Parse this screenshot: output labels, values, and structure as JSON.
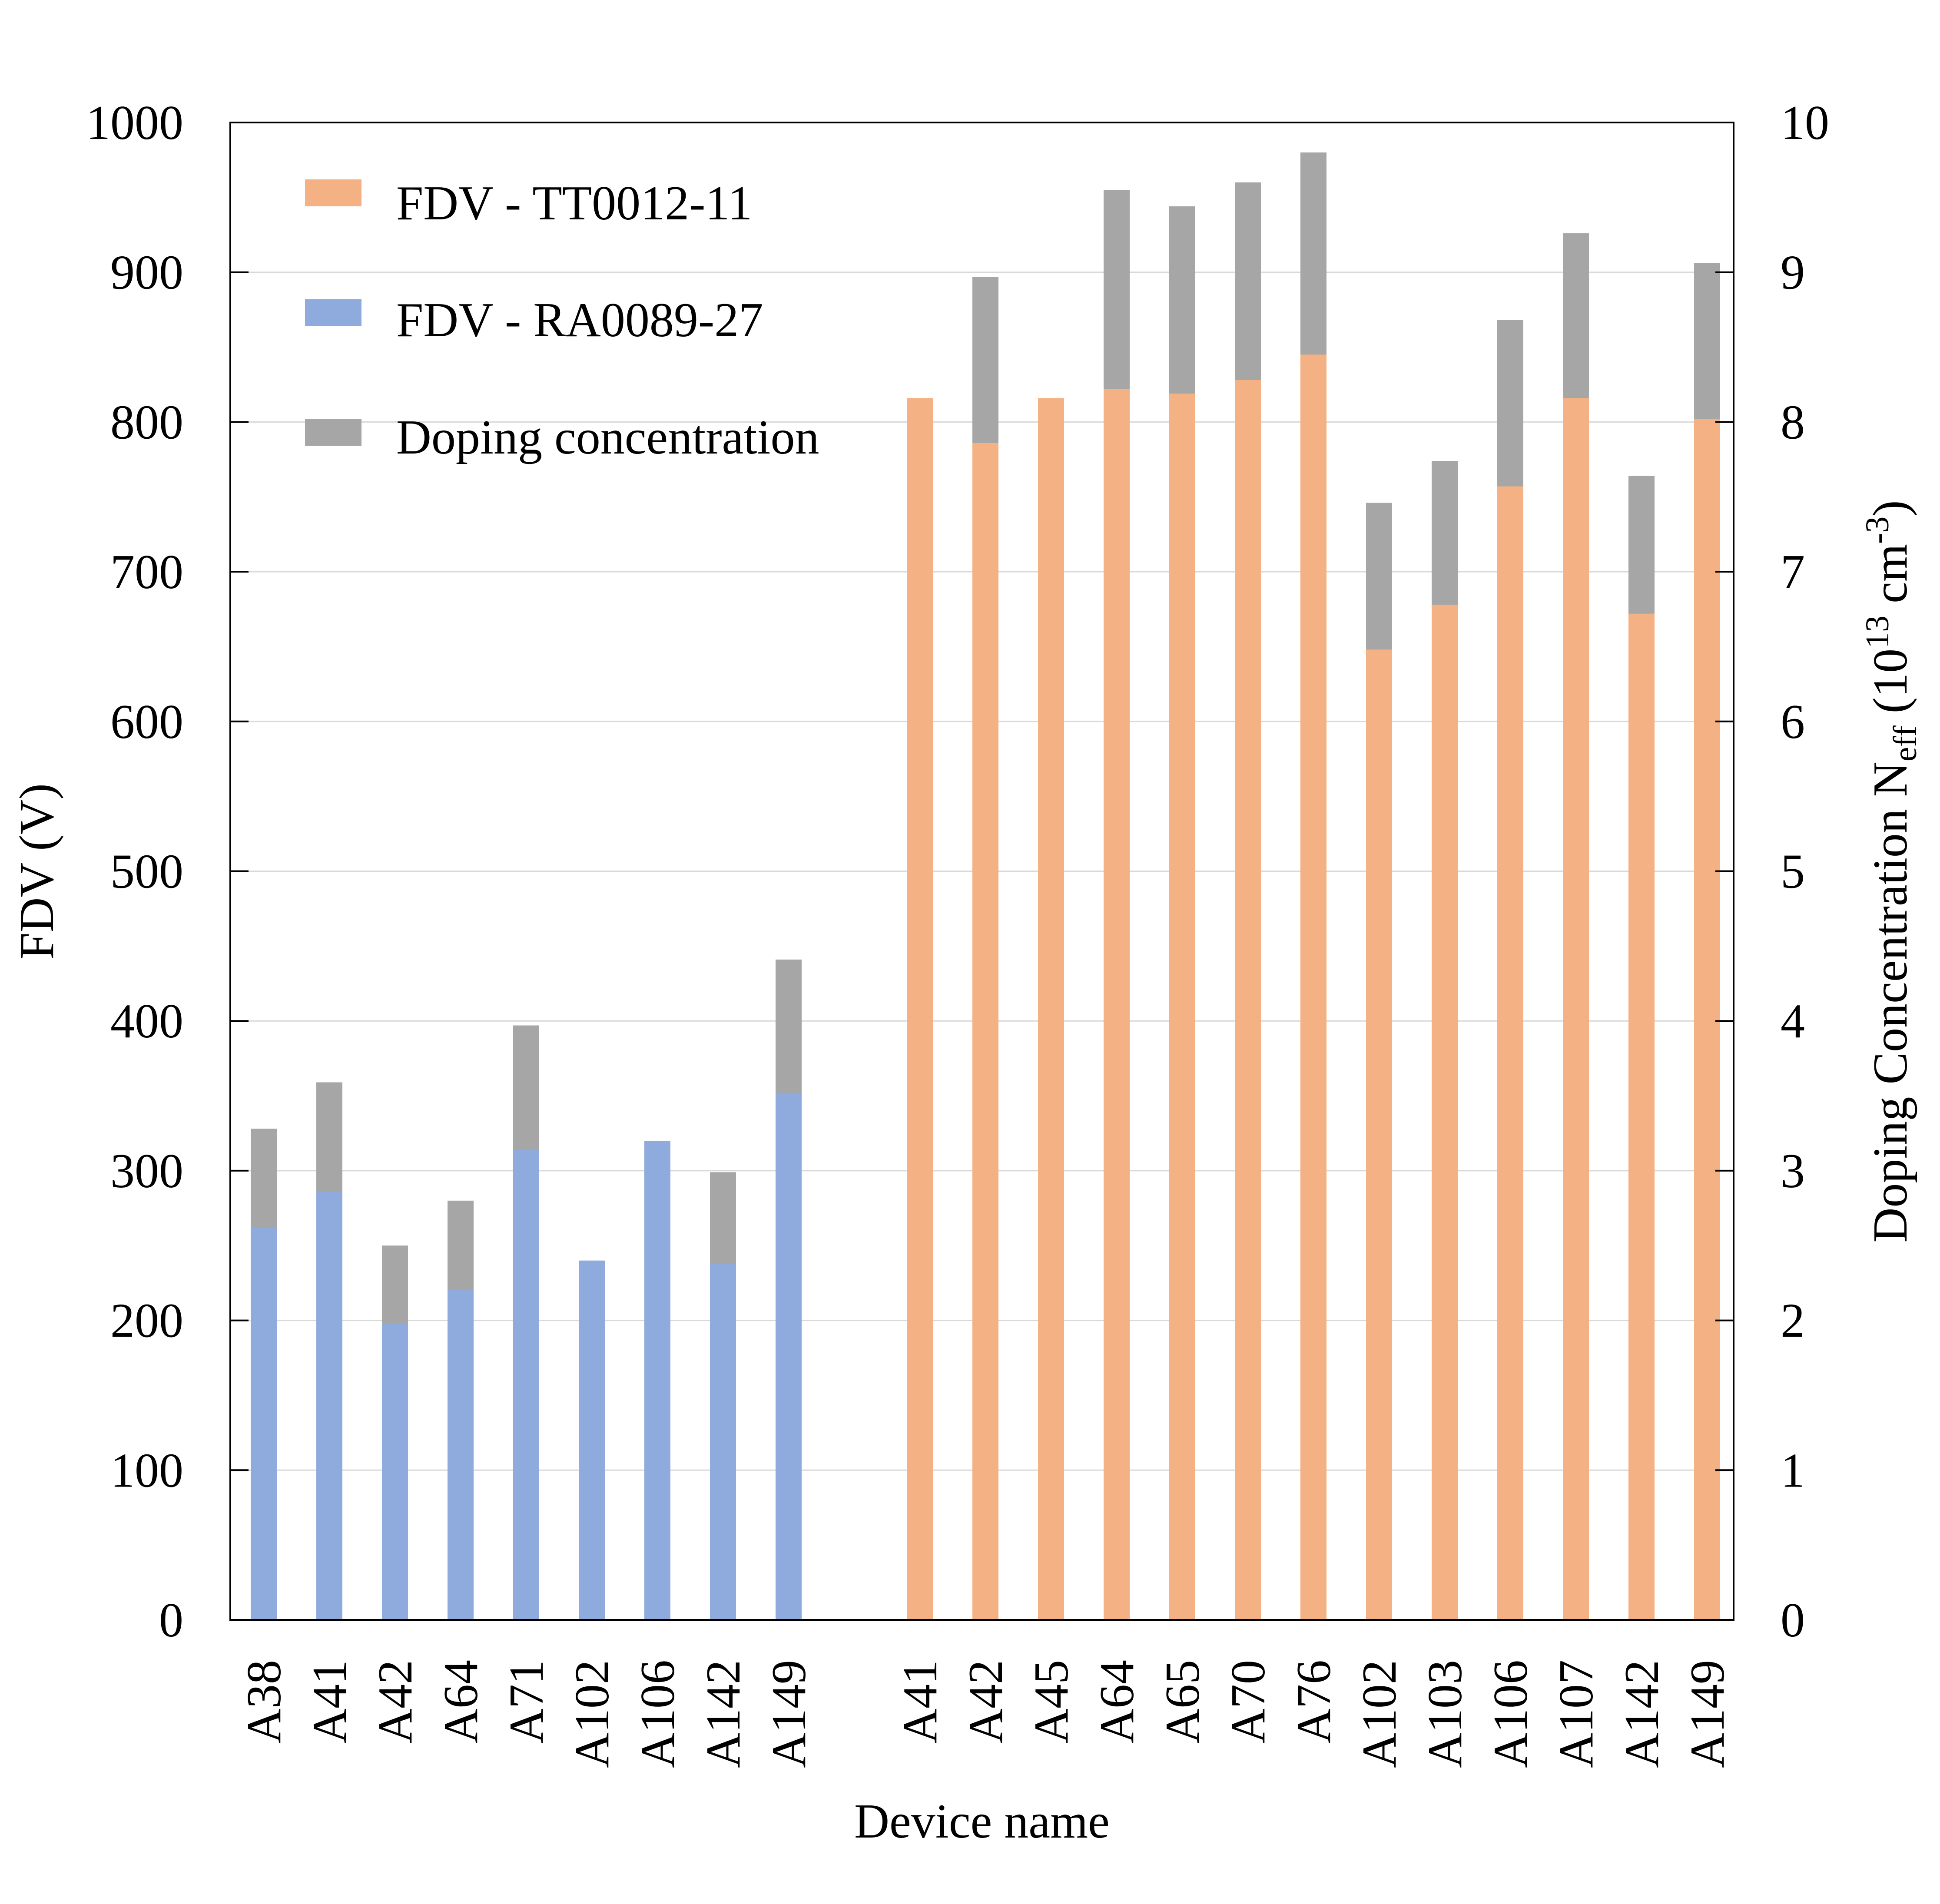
{
  "chart_data": {
    "type": "bar",
    "xlabel": "Device name",
    "ylabel": "FDV (V)",
    "ylabel_right": {
      "prefix": "Doping Concentration N",
      "subscript": "eff",
      "middle": " (10",
      "superscript": "13",
      "unit": " cm",
      "unit_superscript": "-3",
      "suffix": ")"
    },
    "ylim": [
      0,
      1000
    ],
    "ylim_right": [
      0,
      10
    ],
    "yticks": [
      "0",
      "100",
      "200",
      "300",
      "400",
      "500",
      "600",
      "700",
      "800",
      "900",
      "1000"
    ],
    "yticks_right": [
      "0",
      "1",
      "2",
      "3",
      "4",
      "5",
      "6",
      "7",
      "8",
      "9",
      "10"
    ],
    "grid": true,
    "legend_position": "top-left",
    "legend": [
      {
        "label": "FDV - TT0012-11",
        "color": "#f4b183"
      },
      {
        "label": "FDV - RA0089-27",
        "color": "#8faadc"
      },
      {
        "label": "Doping concentration",
        "color": "#a6a6a6"
      }
    ],
    "groups": [
      {
        "series": "FDV - RA0089-27",
        "color": "#8faadc",
        "categories": [
          "A38",
          "A41",
          "A42",
          "A64",
          "A71",
          "A102",
          "A106",
          "A142",
          "A149"
        ],
        "fdv": [
          262,
          286,
          198,
          221,
          314,
          240,
          320,
          238,
          352
        ],
        "doping_top": [
          328,
          359,
          250,
          280,
          397,
          null,
          null,
          299,
          441
        ]
      },
      {
        "series": "FDV - TT0012-11",
        "color": "#f4b183",
        "categories": [
          "A41",
          "A42",
          "A45",
          "A64",
          "A65",
          "A70",
          "A76",
          "A102",
          "A103",
          "A106",
          "A107",
          "A142",
          "A149"
        ],
        "fdv": [
          816,
          786,
          816,
          822,
          819,
          828,
          845,
          648,
          678,
          757,
          816,
          672,
          802
        ],
        "doping_top": [
          null,
          897,
          null,
          955,
          944,
          960,
          980,
          746,
          774,
          868,
          926,
          764,
          906
        ]
      }
    ],
    "doping_color": "#a6a6a6"
  }
}
